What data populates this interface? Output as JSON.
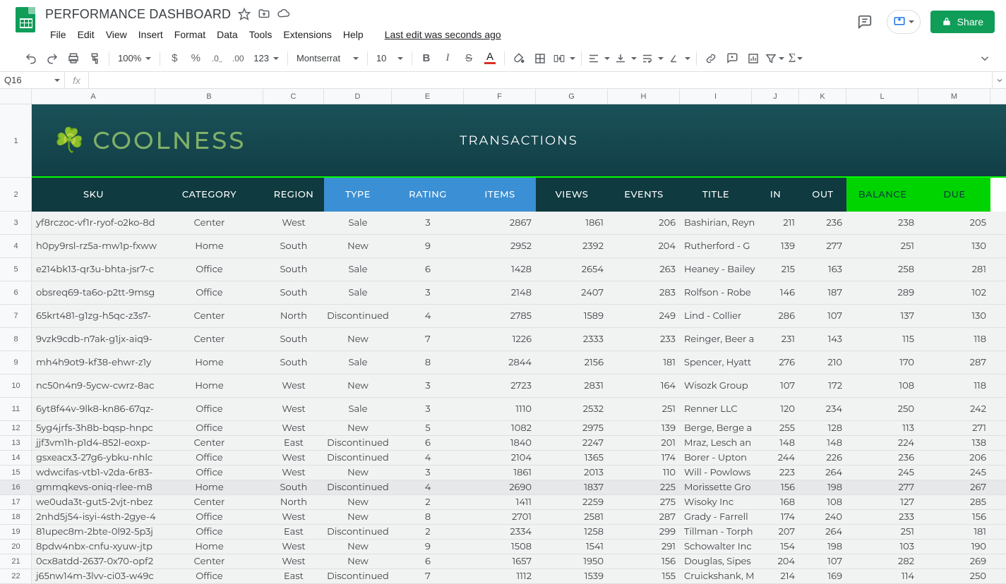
{
  "doc": {
    "title": "PERFORMANCE DASHBOARD",
    "last_edit": "Last edit was seconds ago"
  },
  "menu": {
    "file": "File",
    "edit": "Edit",
    "view": "View",
    "insert": "Insert",
    "format": "Format",
    "data": "Data",
    "tools": "Tools",
    "extensions": "Extensions",
    "help": "Help"
  },
  "share": {
    "label": "Share"
  },
  "toolbar": {
    "zoom": "100%",
    "font": "Montserrat",
    "size": "10",
    "more": "123"
  },
  "namebox": {
    "ref": "Q16"
  },
  "banner": {
    "brand": "COOLNESS",
    "clover": "☘️",
    "section": "TRANSACTIONS"
  },
  "columns": {
    "letters": [
      "A",
      "B",
      "C",
      "D",
      "E",
      "F",
      "G",
      "H",
      "I",
      "J",
      "K",
      "L",
      "M"
    ],
    "widths": [
      175,
      153,
      86,
      96,
      102,
      102,
      102,
      102,
      102,
      67,
      67,
      102,
      102
    ],
    "headers": [
      "SKU",
      "CATEGORY",
      "REGION",
      "TYPE",
      "RATING",
      "ITEMS",
      "VIEWS",
      "EVENTS",
      "TITLE",
      "IN",
      "OUT",
      "BALANCE",
      "DUE"
    ],
    "group": [
      "dark",
      "dark",
      "dark",
      "blue",
      "blue",
      "blue",
      "dark",
      "dark",
      "dark",
      "dark",
      "dark",
      "green",
      "green"
    ],
    "align": [
      "left",
      "ctr",
      "ctr",
      "ctr",
      "ctr",
      "num",
      "num",
      "num",
      "left",
      "num",
      "num",
      "num",
      "num"
    ]
  },
  "row_heights": {
    "r1": 104,
    "r2": 48,
    "small_start": 12,
    "tall": [
      3,
      4,
      5,
      6,
      7,
      8,
      9,
      10,
      11
    ]
  },
  "rows": [
    [
      "yf8rczoc-vf1r-ryof-o2ko-8d",
      "Center",
      "West",
      "Sale",
      "3",
      "2867",
      "1861",
      "206",
      "Bashirian, Reyn",
      "211",
      "236",
      "238",
      "205"
    ],
    [
      "h0py9rsl-rz5a-mw1p-fxww",
      "Home",
      "South",
      "New",
      "9",
      "2952",
      "2392",
      "204",
      "Rutherford - G",
      "139",
      "277",
      "251",
      "130"
    ],
    [
      "e214bk13-qr3u-bhta-jsr7-c",
      "Office",
      "South",
      "Sale",
      "6",
      "1428",
      "2654",
      "263",
      "Heaney - Bailey",
      "215",
      "163",
      "258",
      "281"
    ],
    [
      "obsreq69-ta6o-p2tt-9msg",
      "Office",
      "South",
      "Sale",
      "3",
      "2148",
      "2407",
      "283",
      "Rolfson - Robe",
      "146",
      "187",
      "289",
      "102"
    ],
    [
      "65krt481-g1zg-h5qc-z3s7-",
      "Center",
      "North",
      "Discontinued",
      "4",
      "2785",
      "1589",
      "249",
      "Lind - Collier",
      "286",
      "107",
      "137",
      "130"
    ],
    [
      "9vzk9cdb-n7ak-g1jx-aiq9-",
      "Center",
      "South",
      "New",
      "7",
      "1226",
      "2333",
      "233",
      "Reinger, Beer a",
      "231",
      "143",
      "115",
      "118"
    ],
    [
      "mh4h9ot9-kf38-ehwr-z1y",
      "Home",
      "South",
      "Sale",
      "8",
      "2844",
      "2156",
      "181",
      "Spencer, Hyatt",
      "276",
      "210",
      "170",
      "287"
    ],
    [
      "nc50n4n9-5ycw-cwrz-8ac",
      "Home",
      "West",
      "New",
      "3",
      "2723",
      "2831",
      "164",
      "Wisozk Group",
      "107",
      "172",
      "108",
      "118"
    ],
    [
      "6yt8f44v-9lk8-kn86-67qz-",
      "Office",
      "West",
      "Sale",
      "3",
      "1110",
      "2532",
      "251",
      "Renner LLC",
      "120",
      "234",
      "250",
      "242"
    ],
    [
      "5yg4jrfs-3h8b-bqsp-hnpc",
      "Office",
      "West",
      "New",
      "5",
      "1082",
      "2975",
      "139",
      "Berge, Berge a",
      "255",
      "128",
      "113",
      "271"
    ],
    [
      "jjf3vm1h-p1d4-852l-eoxp-",
      "Center",
      "East",
      "Discontinued",
      "6",
      "1840",
      "2247",
      "201",
      "Mraz, Lesch an",
      "148",
      "148",
      "224",
      "138"
    ],
    [
      "gsxeacx3-27g6-ybku-nhlc",
      "Office",
      "West",
      "Discontinued",
      "4",
      "2104",
      "1365",
      "174",
      "Borer - Upton",
      "244",
      "226",
      "236",
      "206"
    ],
    [
      "wdwcifas-vtb1-v2da-6r83-",
      "Office",
      "West",
      "New",
      "3",
      "1861",
      "2013",
      "110",
      "Will - Powlows",
      "223",
      "264",
      "245",
      "245"
    ],
    [
      "gmmqkevs-oniq-rlee-m8",
      "Home",
      "South",
      "Discontinued",
      "4",
      "2690",
      "1837",
      "225",
      "Morissette Gro",
      "156",
      "198",
      "277",
      "267"
    ],
    [
      "we0uda3t-gut5-2vjt-nbez",
      "Center",
      "North",
      "New",
      "2",
      "1411",
      "2259",
      "275",
      "Wisoky Inc",
      "168",
      "108",
      "127",
      "285"
    ],
    [
      "2nhd5j54-isyi-4sth-2gye-4",
      "Office",
      "West",
      "New",
      "8",
      "2701",
      "2581",
      "287",
      "Grady - Farrell",
      "174",
      "240",
      "233",
      "156"
    ],
    [
      "81upec8m-2bte-0l92-5p3j",
      "Office",
      "East",
      "Discontinued",
      "2",
      "2334",
      "1258",
      "299",
      "Tillman - Torph",
      "207",
      "264",
      "251",
      "181"
    ],
    [
      "8pdw4nbx-cnfu-xyuw-jtp",
      "Home",
      "West",
      "New",
      "9",
      "1508",
      "1541",
      "291",
      "Schowalter Inc",
      "154",
      "198",
      "103",
      "190"
    ],
    [
      "0cx8atdd-2637-0x70-opf2",
      "Center",
      "West",
      "New",
      "6",
      "1657",
      "1950",
      "156",
      "Douglas, Sipes",
      "204",
      "107",
      "282",
      "269"
    ],
    [
      "j65nw14m-3lvv-ci03-w49c",
      "Office",
      "East",
      "Discontinued",
      "7",
      "1112",
      "1539",
      "155",
      "Cruickshank, M",
      "214",
      "169",
      "114",
      "250"
    ]
  ],
  "selected_row": 16
}
